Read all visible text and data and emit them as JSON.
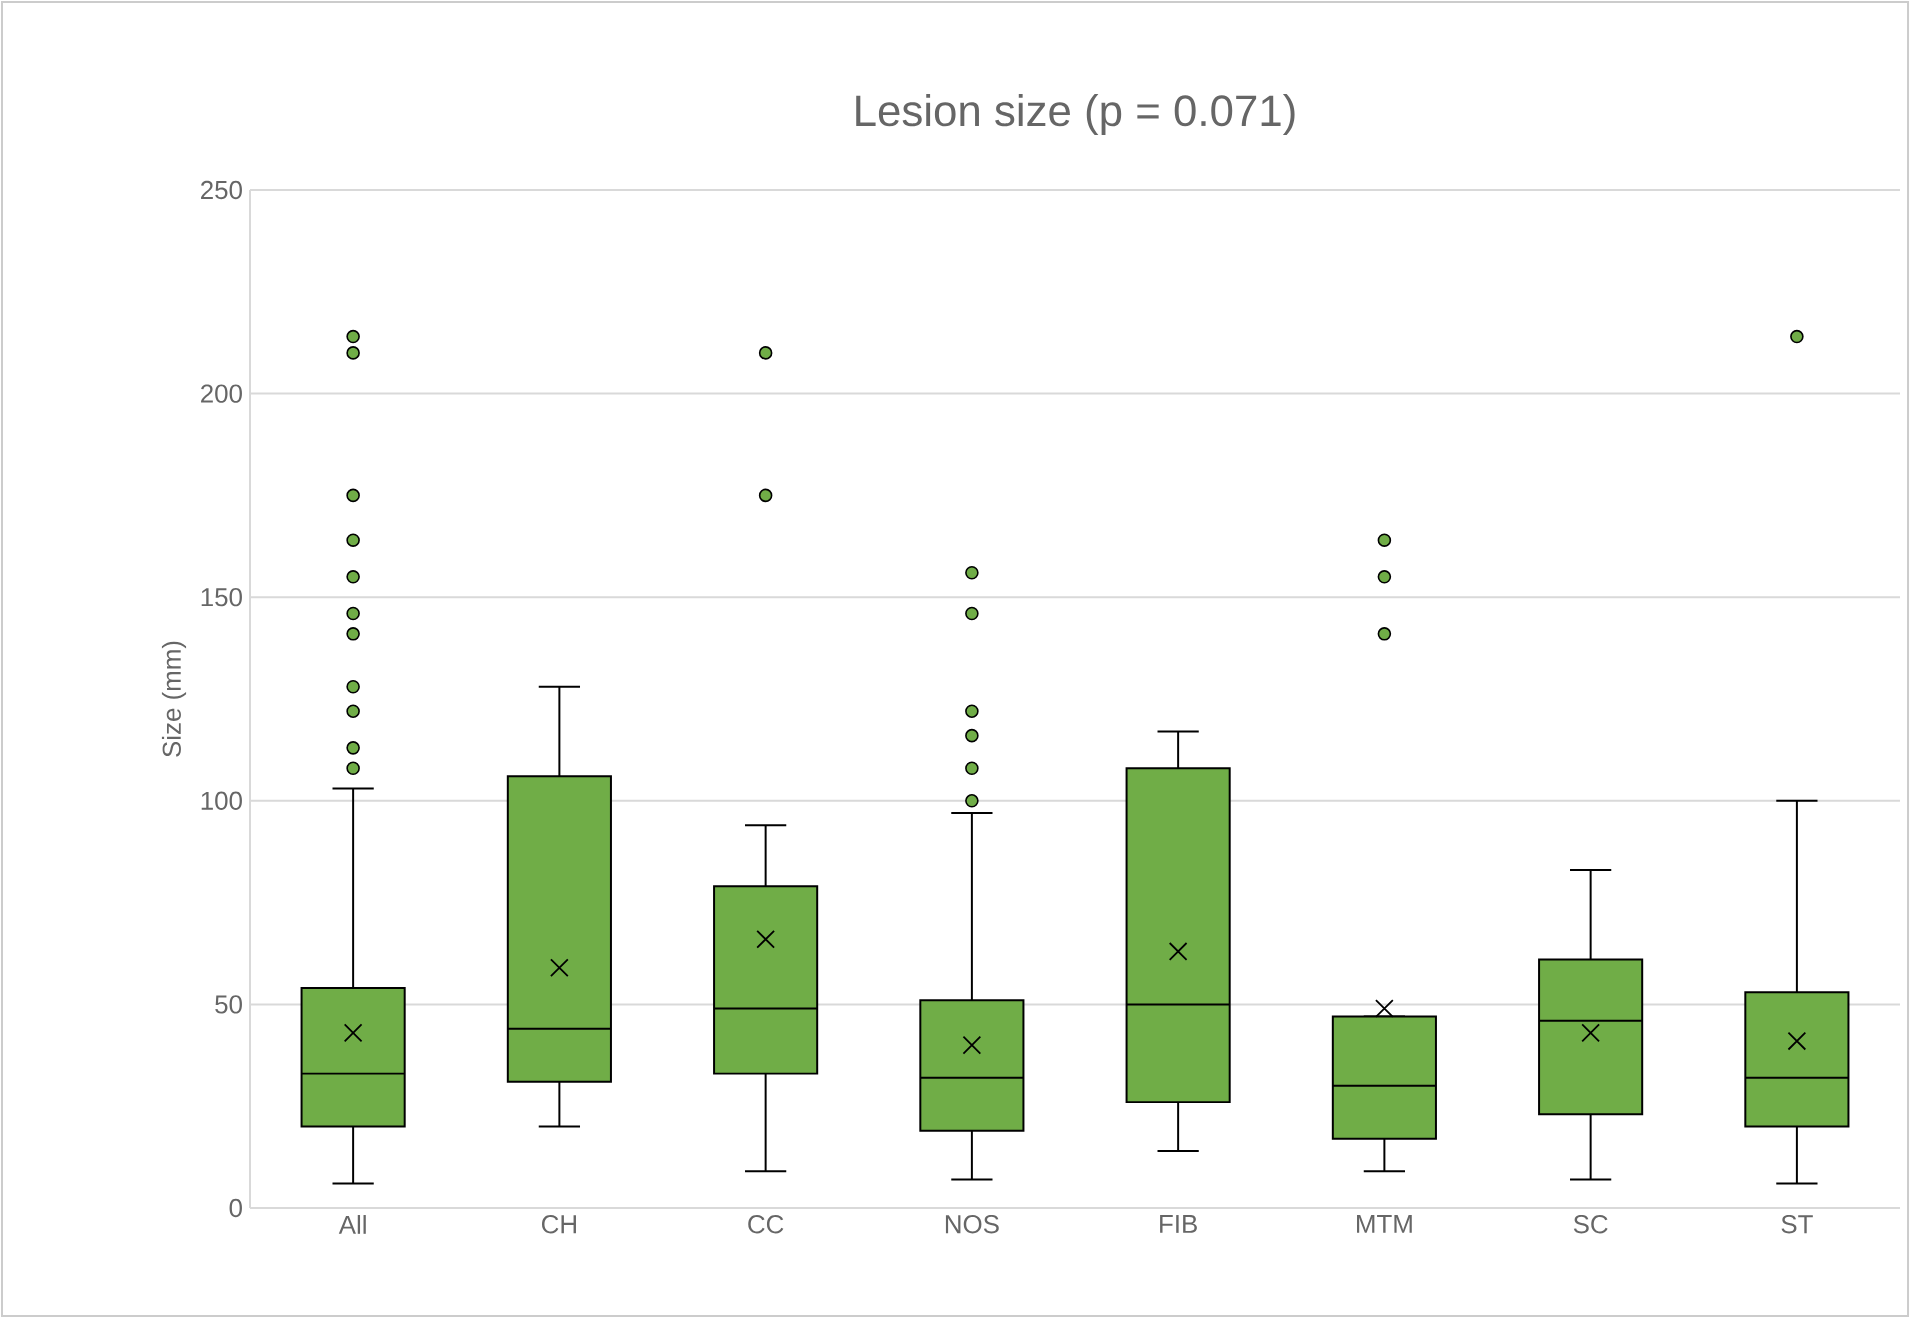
{
  "chart_data": {
    "type": "box",
    "title": "Lesion size (p = 0.071)",
    "ylabel": "Size (mm)",
    "color": "#70ad47",
    "grid": "y",
    "ylim": [
      0,
      250
    ],
    "yticks": [
      0,
      50,
      100,
      150,
      200,
      250
    ],
    "categories": [
      "All",
      "CH",
      "CC",
      "NOS",
      "FIB",
      "MTM",
      "SC",
      "ST"
    ],
    "boxes": [
      {
        "low": 6,
        "q1": 20,
        "median": 33,
        "q3": 54,
        "high": 103,
        "mean": 43,
        "outliers": [
          108,
          113,
          122,
          128,
          141,
          146,
          155,
          164,
          175,
          210,
          214
        ]
      },
      {
        "low": 20,
        "q1": 31,
        "median": 44,
        "q3": 106,
        "high": 128,
        "mean": 59
      },
      {
        "low": 9,
        "q1": 33,
        "median": 49,
        "q3": 79,
        "high": 94,
        "mean": 66,
        "outliers": [
          175,
          210
        ]
      },
      {
        "low": 7,
        "q1": 19,
        "median": 32,
        "q3": 51,
        "high": 97,
        "mean": 40,
        "outliers": [
          100,
          108,
          116,
          122,
          146,
          156
        ]
      },
      {
        "low": 14,
        "q1": 26,
        "median": 50,
        "q3": 108,
        "high": 117,
        "mean": 63
      },
      {
        "low": 9,
        "q1": 17,
        "median": 30,
        "q3": 47,
        "high": 47,
        "mean": 49,
        "outliers": [
          141,
          155,
          164
        ]
      },
      {
        "low": 7,
        "q1": 23,
        "median": 46,
        "q3": 61,
        "high": 83,
        "mean": 43
      },
      {
        "low": 6,
        "q1": 20,
        "median": 32,
        "q3": 53,
        "high": 100,
        "mean": 41,
        "outliers": [
          214
        ]
      }
    ]
  }
}
